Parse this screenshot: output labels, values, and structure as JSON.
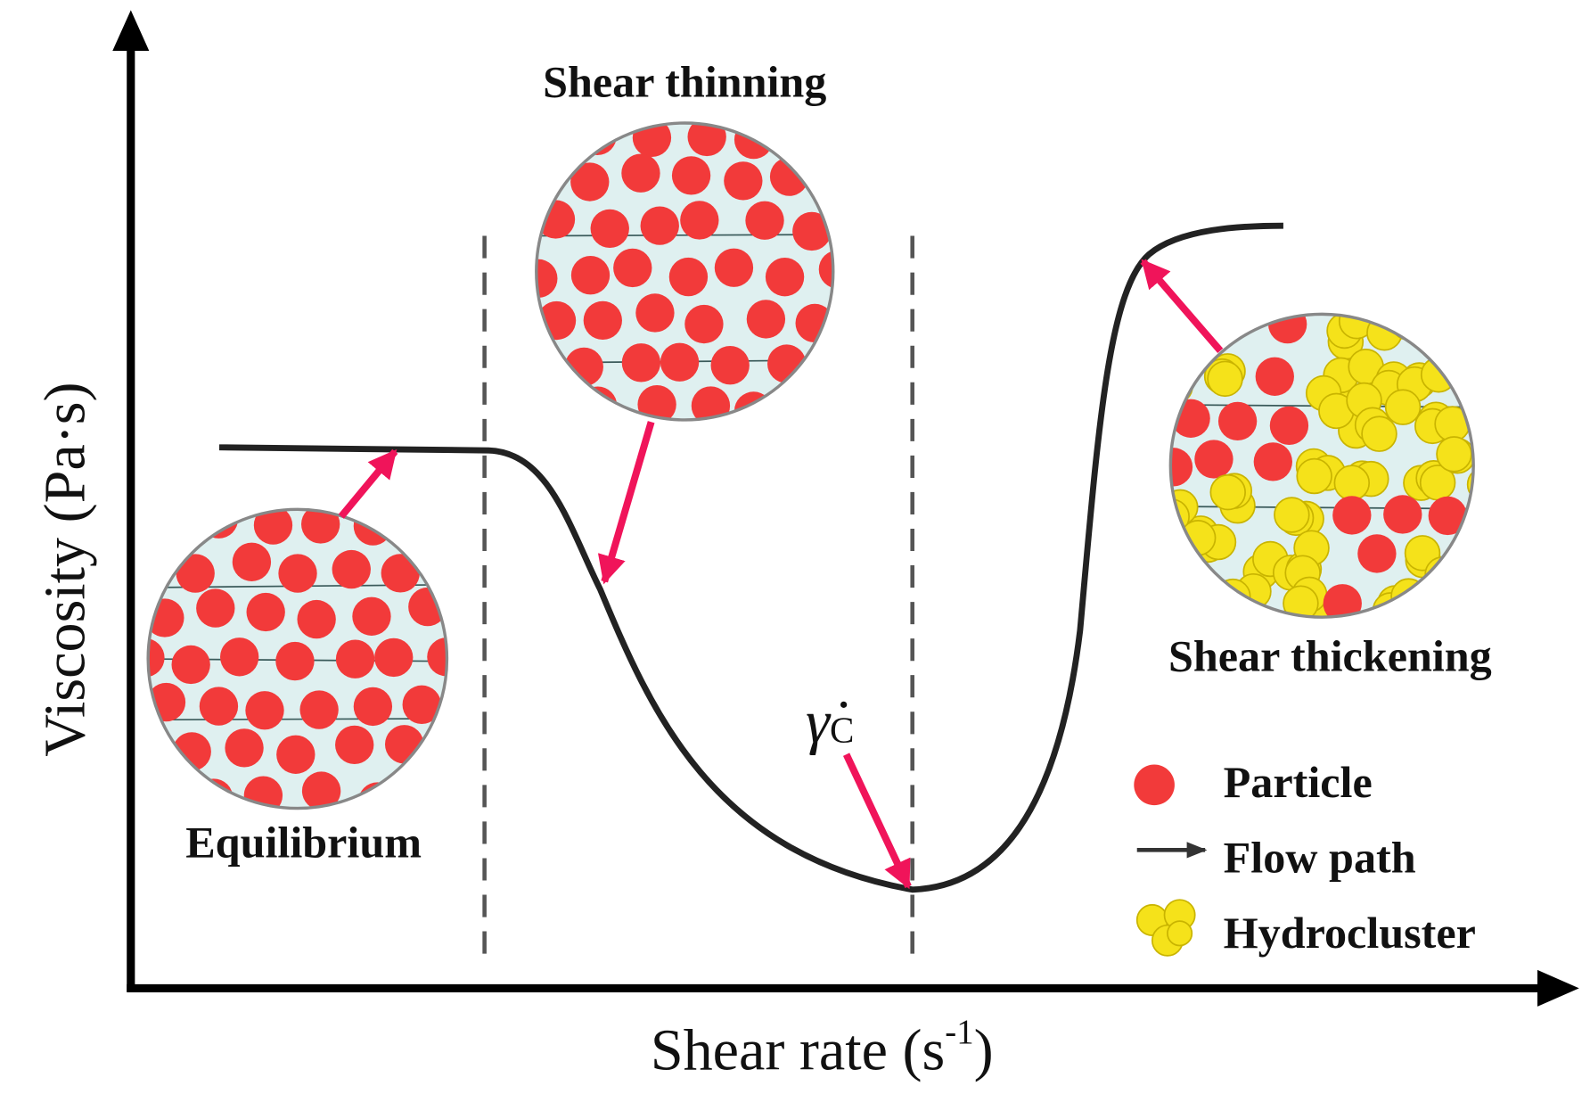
{
  "axes": {
    "y_label": "Viscosity (Pa·s)",
    "x_label": "Shear rate (s",
    "x_label_exponent": "-1",
    "x_label_end": ")"
  },
  "regions": {
    "equilibrium": "Equilibrium",
    "thinning": "Shear thinning",
    "thickening": "Shear thickening"
  },
  "critical": {
    "symbol": "γ̇",
    "subscript": "C"
  },
  "legend": {
    "particle": "Particle",
    "flow_path": "Flow path",
    "hydrocluster": "Hydrocluster"
  }
}
